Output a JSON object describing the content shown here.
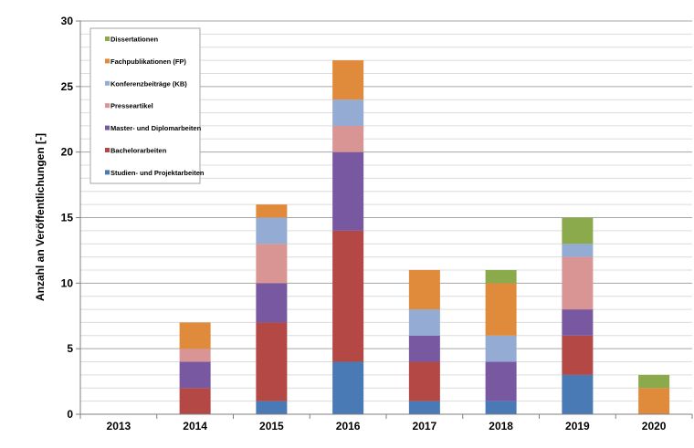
{
  "chart_data": {
    "type": "bar",
    "stacked": true,
    "title": "",
    "xlabel": "",
    "ylabel": "Anzahl an Veröffentlichungen [-]",
    "ylim": [
      0,
      30
    ],
    "yticks": [
      "0",
      "5",
      "10",
      "15",
      "20",
      "25",
      "30"
    ],
    "grid": true,
    "legend_position": "top-left",
    "categories": [
      "2013",
      "2014",
      "2015",
      "2016",
      "2017",
      "2018",
      "2019",
      "2020"
    ],
    "series": [
      {
        "name": "Studien- und Projektarbeiten",
        "color": "#4a7ab5",
        "values": [
          0,
          0,
          1,
          4,
          1,
          1,
          3,
          0
        ]
      },
      {
        "name": "Bachelorarbeiten",
        "color": "#b44844",
        "values": [
          0,
          2,
          6,
          10,
          3,
          0,
          3,
          0
        ]
      },
      {
        "name": "Master- und Diplomarbeiten",
        "color": "#7858a0",
        "values": [
          0,
          2,
          3,
          6,
          2,
          3,
          2,
          0
        ]
      },
      {
        "name": "Presseartikel",
        "color": "#d99594",
        "values": [
          0,
          1,
          3,
          2,
          0,
          0,
          4,
          0
        ]
      },
      {
        "name": "Konferenzbeiträge (KB)",
        "color": "#94abd4",
        "values": [
          0,
          0,
          2,
          2,
          2,
          2,
          1,
          0
        ]
      },
      {
        "name": "Fachpublikationen (FP)",
        "color": "#e08a3c",
        "values": [
          0,
          2,
          1,
          3,
          3,
          4,
          0,
          2
        ]
      },
      {
        "name": "Dissertationen",
        "color": "#8aaa4c",
        "values": [
          0,
          0,
          0,
          0,
          0,
          1,
          2,
          1
        ]
      }
    ],
    "legend_order": [
      "Dissertationen",
      "Fachpublikationen (FP)",
      "Konferenzbeiträge (KB)",
      "Presseartikel",
      "Master- und Diplomarbeiten",
      "Bachelorarbeiten",
      "Studien- und Projektarbeiten"
    ]
  }
}
